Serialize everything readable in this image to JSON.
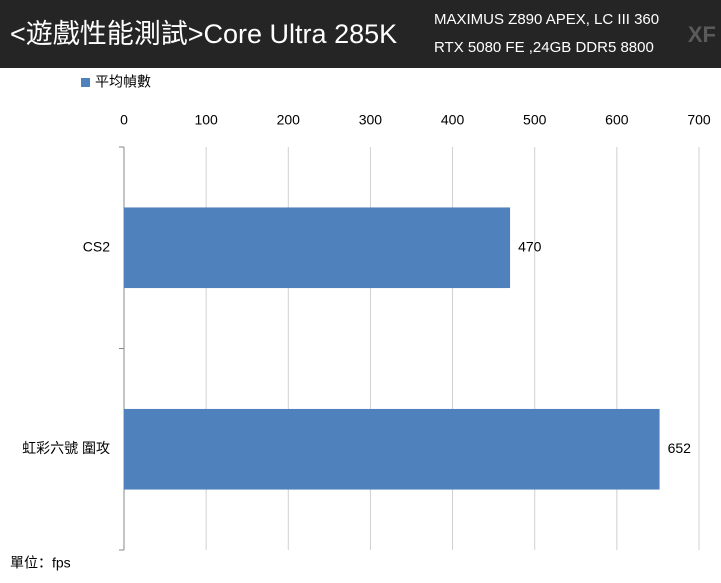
{
  "chart_data": {
    "type": "bar",
    "orientation": "horizontal",
    "title": "<遊戲性能測試>Core Ultra 285K",
    "subtitle": [
      "MAXIMUS Z890 APEX, LC III 360",
      "RTX 5080 FE ,24GB DDR5 8800"
    ],
    "logo": "XF",
    "categories": [
      "CS2",
      "虹彩六號 圍攻"
    ],
    "series": [
      {
        "name": "平均幀數",
        "color": "#4f81bd",
        "values": [
          470,
          652
        ]
      }
    ],
    "xlim": [
      0,
      700
    ],
    "xticks": [
      0,
      100,
      200,
      300,
      400,
      500,
      600,
      700
    ],
    "grid": true,
    "legend": "top-left",
    "unit_note": "單位：fps"
  }
}
